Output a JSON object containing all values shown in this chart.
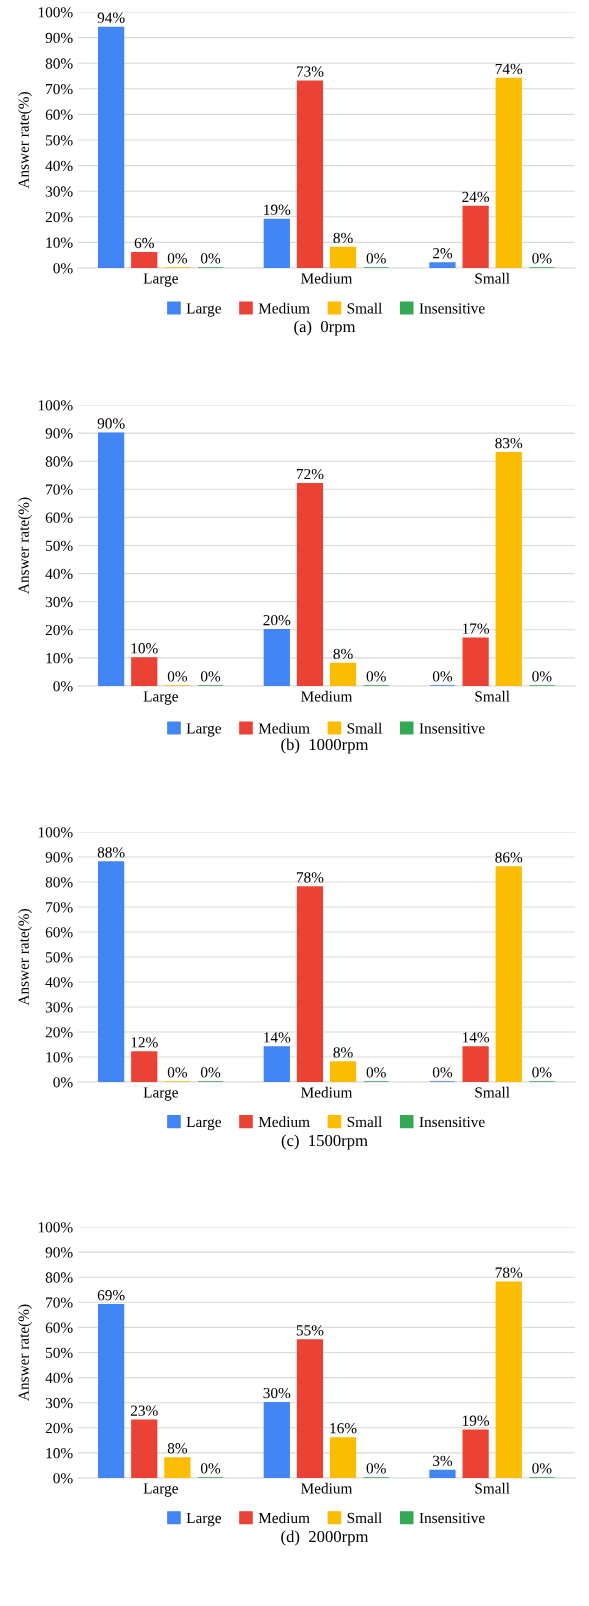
{
  "chart_data": [
    {
      "type": "bar",
      "ylabel": "Answer rate(%)",
      "annotations": [
        "(a)  0rpm"
      ],
      "categories": [
        "Large",
        "Medium",
        "Small"
      ],
      "ylim": [
        0,
        100
      ],
      "yticks": [
        {
          "value": 0,
          "label": "0%"
        },
        {
          "value": 10,
          "label": "10%"
        },
        {
          "value": 20,
          "label": "20%"
        },
        {
          "value": 30,
          "label": "30%"
        },
        {
          "value": 40,
          "label": "40%"
        },
        {
          "value": 50,
          "label": "50%"
        },
        {
          "value": 60,
          "label": "60%"
        },
        {
          "value": 70,
          "label": "70%"
        },
        {
          "value": 80,
          "label": "80%"
        },
        {
          "value": 90,
          "label": "90%"
        },
        {
          "value": 100,
          "label": "100%"
        }
      ],
      "grid": "y",
      "legend": "bottom",
      "series": [
        {
          "name": "Large",
          "color": "#4285f4",
          "values": [
            94,
            19,
            2
          ],
          "value_labels": [
            "94%",
            "19%",
            "2%"
          ]
        },
        {
          "name": "Medium",
          "color": "#ea4335",
          "values": [
            6,
            73,
            24
          ],
          "value_labels": [
            "6%",
            "73%",
            "24%"
          ]
        },
        {
          "name": "Small",
          "color": "#fbbc04",
          "values": [
            0,
            8,
            74
          ],
          "value_labels": [
            "0%",
            "8%",
            "74%"
          ]
        },
        {
          "name": "Insensitive",
          "color": "#34a853",
          "values": [
            0,
            0,
            0
          ],
          "value_labels": [
            "0%",
            "0%",
            "0%"
          ]
        }
      ]
    },
    {
      "type": "bar",
      "ylabel": "Answer rate(%)",
      "annotations": [
        "(b)  1000rpm"
      ],
      "categories": [
        "Large",
        "Medium",
        "Small"
      ],
      "ylim": [
        0,
        100
      ],
      "yticks": [
        {
          "value": 0,
          "label": "0%"
        },
        {
          "value": 10,
          "label": "10%"
        },
        {
          "value": 20,
          "label": "20%"
        },
        {
          "value": 30,
          "label": "30%"
        },
        {
          "value": 40,
          "label": "40%"
        },
        {
          "value": 50,
          "label": "50%"
        },
        {
          "value": 60,
          "label": "60%"
        },
        {
          "value": 70,
          "label": "70%"
        },
        {
          "value": 80,
          "label": "80%"
        },
        {
          "value": 90,
          "label": "90%"
        },
        {
          "value": 100,
          "label": "100%"
        }
      ],
      "grid": "y",
      "legend": "bottom",
      "series": [
        {
          "name": "Large",
          "color": "#4285f4",
          "values": [
            90,
            20,
            0
          ],
          "value_labels": [
            "90%",
            "20%",
            "0%"
          ]
        },
        {
          "name": "Medium",
          "color": "#ea4335",
          "values": [
            10,
            72,
            17
          ],
          "value_labels": [
            "10%",
            "72%",
            "17%"
          ]
        },
        {
          "name": "Small",
          "color": "#fbbc04",
          "values": [
            0,
            8,
            83
          ],
          "value_labels": [
            "0%",
            "8%",
            "83%"
          ]
        },
        {
          "name": "Insensitive",
          "color": "#34a853",
          "values": [
            0,
            0,
            0
          ],
          "value_labels": [
            "0%",
            "0%",
            "0%"
          ]
        }
      ]
    },
    {
      "type": "bar",
      "ylabel": "Answer rate(%)",
      "annotations": [
        "(c)  1500rpm"
      ],
      "categories": [
        "Large",
        "Medium",
        "Small"
      ],
      "ylim": [
        0,
        100
      ],
      "yticks": [
        {
          "value": 0,
          "label": "0%"
        },
        {
          "value": 10,
          "label": "10%"
        },
        {
          "value": 20,
          "label": "20%"
        },
        {
          "value": 30,
          "label": "30%"
        },
        {
          "value": 40,
          "label": "40%"
        },
        {
          "value": 50,
          "label": "50%"
        },
        {
          "value": 60,
          "label": "60%"
        },
        {
          "value": 70,
          "label": "70%"
        },
        {
          "value": 80,
          "label": "80%"
        },
        {
          "value": 90,
          "label": "90%"
        },
        {
          "value": 100,
          "label": "100%"
        }
      ],
      "grid": "y",
      "legend": "bottom",
      "series": [
        {
          "name": "Large",
          "color": "#4285f4",
          "values": [
            88,
            14,
            0
          ],
          "value_labels": [
            "88%",
            "14%",
            "0%"
          ]
        },
        {
          "name": "Medium",
          "color": "#ea4335",
          "values": [
            12,
            78,
            14
          ],
          "value_labels": [
            "12%",
            "78%",
            "14%"
          ]
        },
        {
          "name": "Small",
          "color": "#fbbc04",
          "values": [
            0,
            8,
            86
          ],
          "value_labels": [
            "0%",
            "8%",
            "86%"
          ]
        },
        {
          "name": "Insensitive",
          "color": "#34a853",
          "values": [
            0,
            0,
            0
          ],
          "value_labels": [
            "0%",
            "0%",
            "0%"
          ]
        }
      ]
    },
    {
      "type": "bar",
      "ylabel": "Answer rate(%)",
      "annotations": [
        "(d)  2000rpm"
      ],
      "categories": [
        "Large",
        "Medium",
        "Small"
      ],
      "ylim": [
        0,
        100
      ],
      "yticks": [
        {
          "value": 0,
          "label": "0%"
        },
        {
          "value": 10,
          "label": "10%"
        },
        {
          "value": 20,
          "label": "20%"
        },
        {
          "value": 30,
          "label": "30%"
        },
        {
          "value": 40,
          "label": "40%"
        },
        {
          "value": 50,
          "label": "50%"
        },
        {
          "value": 60,
          "label": "60%"
        },
        {
          "value": 70,
          "label": "70%"
        },
        {
          "value": 80,
          "label": "80%"
        },
        {
          "value": 90,
          "label": "90%"
        },
        {
          "value": 100,
          "label": "100%"
        }
      ],
      "grid": "y",
      "legend": "bottom",
      "series": [
        {
          "name": "Large",
          "color": "#4285f4",
          "values": [
            69,
            30,
            3
          ],
          "value_labels": [
            "69%",
            "30%",
            "3%"
          ]
        },
        {
          "name": "Medium",
          "color": "#ea4335",
          "values": [
            23,
            55,
            19
          ],
          "value_labels": [
            "23%",
            "55%",
            "19%"
          ]
        },
        {
          "name": "Small",
          "color": "#fbbc04",
          "values": [
            8,
            16,
            78
          ],
          "value_labels": [
            "8%",
            "16%",
            "78%"
          ]
        },
        {
          "name": "Insensitive",
          "color": "#34a853",
          "values": [
            0,
            0,
            0
          ],
          "value_labels": [
            "0%",
            "0%",
            "0%"
          ]
        }
      ]
    }
  ]
}
